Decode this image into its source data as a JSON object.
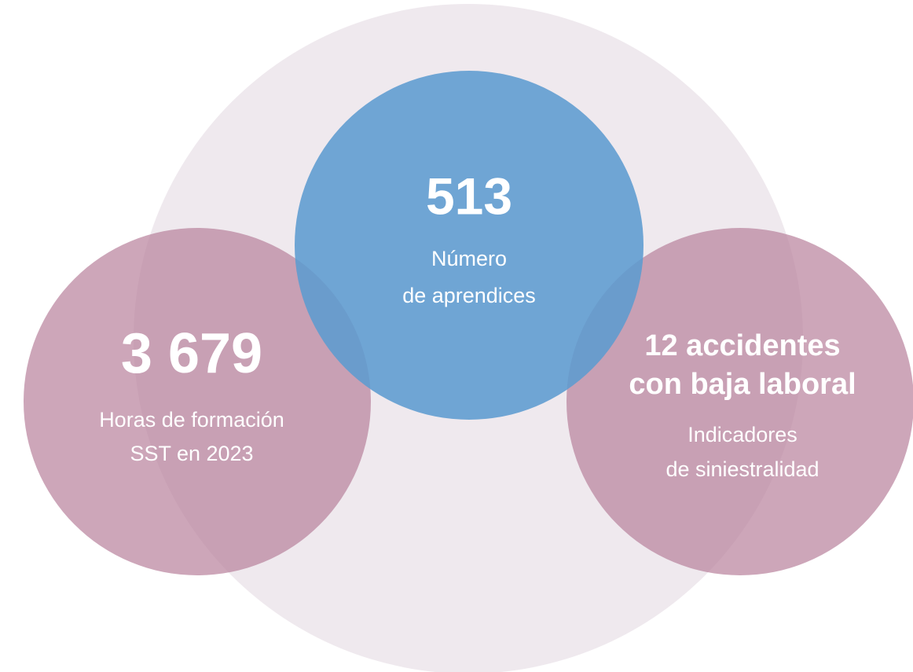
{
  "items": [
    {
      "headline_lines": [
        "513"
      ],
      "label_lines": [
        "Número",
        "de aprendices"
      ]
    },
    {
      "headline_lines": [
        "3 679"
      ],
      "label_lines": [
        "Horas de formación",
        "SST en 2023"
      ]
    },
    {
      "headline_lines": [
        "12 accidentes",
        "con baja laboral"
      ],
      "label_lines": [
        "Indicadores",
        "de siniestralidad"
      ]
    }
  ]
}
